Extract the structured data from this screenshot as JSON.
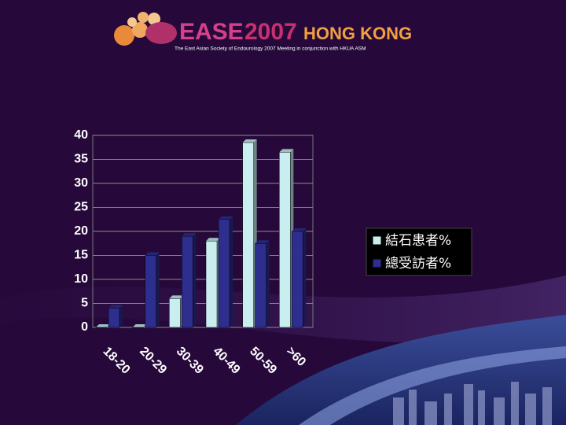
{
  "header": {
    "logo_ease": "EASE",
    "logo_year": "2007",
    "logo_city": "HONG KONG",
    "tagline": "The East Asian Society of Endourology 2007 Meeting in conjunction with HKUA ASM"
  },
  "chart_data": {
    "type": "bar3d",
    "categories": [
      "18-20",
      "20-29",
      "30-39",
      "40-49",
      "50-59",
      ">60"
    ],
    "series": [
      {
        "name": "結石患者%",
        "color": "#c8eef0",
        "values": [
          0,
          0,
          6,
          18,
          38.5,
          36.5
        ]
      },
      {
        "name": "總受訪者%",
        "color": "#2e2e8e",
        "values": [
          4,
          15,
          19,
          22.5,
          17.5,
          20
        ]
      }
    ],
    "ylim": [
      0,
      40
    ],
    "yticks": [
      0,
      5,
      10,
      15,
      20,
      25,
      30,
      35,
      40
    ],
    "grid": true,
    "legend": "right"
  }
}
